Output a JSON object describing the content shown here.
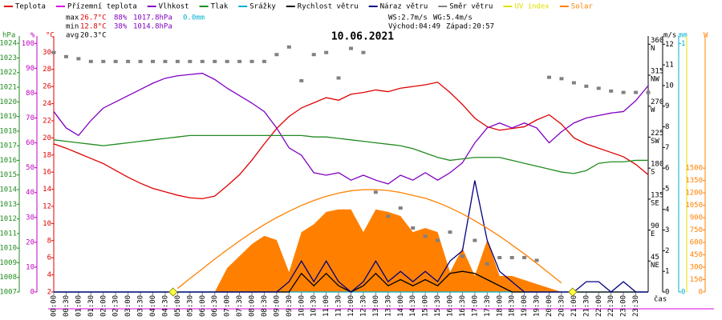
{
  "chart_data": {
    "type": "line",
    "title": "10.06.2021",
    "x_label": "čas",
    "xlim": [
      0,
      24
    ],
    "xticks": [
      {
        "value": 0,
        "label": "00:00"
      },
      {
        "value": 0.5,
        "label": "00:30"
      },
      {
        "value": 1,
        "label": "01:00"
      },
      {
        "value": 1.5,
        "label": "01:30"
      },
      {
        "value": 2,
        "label": "02:00"
      },
      {
        "value": 2.5,
        "label": "02:30"
      },
      {
        "value": 3,
        "label": "03:00"
      },
      {
        "value": 3.5,
        "label": "03:30"
      },
      {
        "value": 4,
        "label": "04:00"
      },
      {
        "value": 4.5,
        "label": "04:30"
      },
      {
        "value": 5,
        "label": "05:00"
      },
      {
        "value": 5.5,
        "label": "05:30"
      },
      {
        "value": 6,
        "label": "06:00"
      },
      {
        "value": 6.5,
        "label": "06:30"
      },
      {
        "value": 7,
        "label": "07:00"
      },
      {
        "value": 7.5,
        "label": "07:30"
      },
      {
        "value": 8,
        "label": "08:00"
      },
      {
        "value": 8.5,
        "label": "08:30"
      },
      {
        "value": 9,
        "label": "09:00"
      },
      {
        "value": 9.5,
        "label": "09:30"
      },
      {
        "value": 10,
        "label": "10:00"
      },
      {
        "value": 10.5,
        "label": "10:30"
      },
      {
        "value": 11,
        "label": "11:00"
      },
      {
        "value": 11.5,
        "label": "11:30"
      },
      {
        "value": 12,
        "label": "12:00"
      },
      {
        "value": 12.5,
        "label": "12:30"
      },
      {
        "value": 13,
        "label": "13:00"
      },
      {
        "value": 13.5,
        "label": "13:30"
      },
      {
        "value": 14,
        "label": "14:00"
      },
      {
        "value": 14.5,
        "label": "14:30"
      },
      {
        "value": 15,
        "label": "15:00"
      },
      {
        "value": 15.5,
        "label": "15:30"
      },
      {
        "value": 16,
        "label": "16:00"
      },
      {
        "value": 16.5,
        "label": "16:30"
      },
      {
        "value": 17,
        "label": "17:00"
      },
      {
        "value": 17.5,
        "label": "17:30"
      },
      {
        "value": 18,
        "label": "18:00"
      },
      {
        "value": 18.5,
        "label": "18:30"
      },
      {
        "value": 19,
        "label": "19:00"
      },
      {
        "value": 19.5,
        "label": "19:30"
      },
      {
        "value": 20,
        "label": "20:00"
      },
      {
        "value": 20.5,
        "label": "20:30"
      },
      {
        "value": 21,
        "label": "21:00"
      },
      {
        "value": 21.5,
        "label": "21:30"
      },
      {
        "value": 22,
        "label": "22:00"
      },
      {
        "value": 22.5,
        "label": "22:30"
      },
      {
        "value": 23,
        "label": "23:00"
      },
      {
        "value": 23.5,
        "label": "23:30"
      }
    ],
    "x": [
      0,
      0.5,
      1,
      1.5,
      2,
      2.5,
      3,
      3.5,
      4,
      4.5,
      5,
      5.5,
      6,
      6.5,
      7,
      7.5,
      8,
      8.5,
      9,
      9.5,
      10,
      10.5,
      11,
      11.5,
      12,
      12.5,
      13,
      13.5,
      14,
      14.5,
      15,
      15.5,
      16,
      16.5,
      17,
      17.5,
      18,
      18.5,
      19,
      19.5,
      20,
      20.5,
      21,
      21.5,
      22,
      22.5,
      23,
      23.5,
      24
    ],
    "axes": {
      "pressure": {
        "unit": "hPa",
        "color": "#228b22",
        "ylim": [
          1007,
          1024.5
        ],
        "yticks": [
          1007,
          1008,
          1009,
          1010,
          1011,
          1012,
          1013,
          1014,
          1015,
          1016,
          1017,
          1018,
          1019,
          1020,
          1021,
          1022,
          1023,
          1024
        ]
      },
      "humidity": {
        "unit": "%",
        "color": "#c000c0",
        "ylim": [
          0,
          103
        ],
        "yticks": [
          0,
          10,
          20,
          30,
          40,
          50,
          60,
          70,
          80,
          90,
          100
        ]
      },
      "temperature": {
        "unit": "°C",
        "color": "#e00000",
        "ylim": [
          2,
          31.9
        ],
        "yticks": [
          2,
          4,
          6,
          8,
          10,
          12,
          14,
          16,
          18,
          20,
          22,
          24,
          26,
          28,
          30
        ]
      },
      "direction": {
        "color": "#000000",
        "ylim": [
          0,
          372
        ],
        "yticks": [
          {
            "value": 45,
            "label": "45",
            "compass": "NE"
          },
          {
            "value": 90,
            "label": "90",
            "compass": "E"
          },
          {
            "value": 135,
            "label": "135",
            "compass": "SE"
          },
          {
            "value": 180,
            "label": "180",
            "compass": "S"
          },
          {
            "value": 225,
            "label": "225",
            "compass": "SW"
          },
          {
            "value": 270,
            "label": "270",
            "compass": "W"
          },
          {
            "value": 315,
            "label": "315",
            "compass": "NW"
          },
          {
            "value": 360,
            "label": "360",
            "compass": "N"
          }
        ]
      },
      "wind": {
        "unit": "m/s",
        "color": "#000000",
        "ylim": [
          0,
          12.4
        ],
        "yticks": [
          0,
          1,
          2,
          3,
          4,
          5,
          6,
          7,
          8,
          9,
          10,
          11,
          12
        ]
      },
      "rain": {
        "unit": "mm",
        "color": "#00b0d0",
        "ylim": [
          0,
          1.03
        ],
        "yticks": [
          0,
          1
        ]
      },
      "uv": {
        "color": "#e0e000",
        "ylim": [
          0,
          12.4
        ]
      },
      "solar": {
        "unit": "W",
        "color": "#ff8000",
        "ylim": [
          0,
          3100
        ],
        "yticks": [
          0,
          150,
          300,
          450,
          600,
          750,
          900,
          1050,
          1200,
          1350,
          1500
        ]
      }
    },
    "series": [
      {
        "name": "Teplota",
        "color": "#e00000",
        "axis": "temperature",
        "type": "line",
        "values": [
          19.3,
          18.8,
          18.2,
          17.6,
          17.0,
          16.2,
          15.4,
          14.7,
          14.1,
          13.7,
          13.3,
          13.0,
          12.9,
          13.2,
          14.4,
          15.7,
          17.4,
          19.3,
          21.1,
          22.5,
          23.5,
          24.1,
          24.7,
          24.4,
          25.1,
          25.3,
          25.6,
          25.4,
          25.8,
          26.0,
          26.2,
          26.5,
          25.3,
          23.9,
          22.3,
          21.3,
          20.9,
          21.1,
          21.3,
          22.1,
          22.7,
          21.6,
          20.0,
          19.3,
          18.8,
          18.3,
          17.8,
          16.9,
          15.7
        ]
      },
      {
        "name": "Přízemní teplota",
        "color": "#e000e0",
        "axis": "temperature",
        "type": "line"
      },
      {
        "name": "Vlhkost",
        "color": "#8000c0",
        "axis": "humidity",
        "type": "line",
        "values": [
          72.6,
          66,
          63,
          69,
          74,
          76.5,
          79,
          81.5,
          84,
          86,
          87,
          87.5,
          88,
          85.5,
          82,
          79,
          76,
          72.6,
          66,
          58,
          55,
          48,
          47,
          48,
          45,
          47,
          45,
          43.5,
          47,
          45,
          48,
          45,
          48,
          52,
          60,
          66,
          68,
          66,
          68,
          66,
          60,
          64.5,
          68,
          70,
          71,
          72,
          72.6,
          77,
          83
        ]
      },
      {
        "name": "Tlak",
        "color": "#228b22",
        "axis": "pressure",
        "type": "line",
        "values": [
          1017.4,
          1017.3,
          1017.2,
          1017.1,
          1017.0,
          1017.1,
          1017.2,
          1017.3,
          1017.4,
          1017.5,
          1017.6,
          1017.7,
          1017.7,
          1017.7,
          1017.7,
          1017.7,
          1017.7,
          1017.7,
          1017.7,
          1017.7,
          1017.7,
          1017.6,
          1017.6,
          1017.5,
          1017.4,
          1017.3,
          1017.2,
          1017.1,
          1017.0,
          1016.8,
          1016.5,
          1016.2,
          1016.0,
          1016.1,
          1016.2,
          1016.2,
          1016.2,
          1016.0,
          1015.8,
          1015.6,
          1015.4,
          1015.2,
          1015.1,
          1015.3,
          1015.8,
          1015.9,
          1015.9,
          1016.0,
          1016.0
        ]
      },
      {
        "name": "Srážky",
        "color": "#00b0d0",
        "axis": "rain",
        "type": "line",
        "values": [
          0,
          0,
          0,
          0,
          0,
          0,
          0,
          0,
          0,
          0,
          0,
          0,
          0,
          0,
          0,
          0,
          0,
          0,
          0,
          0,
          0,
          0,
          0,
          0,
          0,
          0,
          0,
          0,
          0,
          0,
          0,
          0,
          0,
          0,
          0,
          0,
          0,
          0,
          0,
          0,
          0,
          0,
          0,
          0,
          0,
          0,
          0,
          0,
          0
        ]
      },
      {
        "name": "Rychlost větru",
        "color": "#000000",
        "axis": "wind",
        "type": "line",
        "values": [
          0,
          0,
          0,
          0,
          0,
          0,
          0,
          0,
          0,
          0,
          0,
          0,
          0,
          0,
          0,
          0,
          0,
          0,
          0,
          0,
          0.9,
          0.3,
          0.9,
          0.3,
          0,
          0.3,
          0.9,
          0.3,
          0.6,
          0.3,
          0.6,
          0.3,
          0.9,
          1,
          0.9,
          0.6,
          0.3,
          0,
          0,
          0,
          0,
          0,
          0,
          0,
          0,
          0,
          0,
          0,
          0
        ]
      },
      {
        "name": "Náraz větru",
        "color": "#000080",
        "axis": "wind",
        "type": "line",
        "values": [
          0,
          0,
          0,
          0,
          0,
          0,
          0,
          0,
          0,
          0,
          0,
          0,
          0,
          0,
          0,
          0,
          0,
          0,
          0,
          0.5,
          1.5,
          0.5,
          1.5,
          0.5,
          0,
          0.5,
          1.5,
          0.5,
          1,
          0.5,
          1,
          0.5,
          1.5,
          2,
          5.4,
          2.5,
          1,
          0.5,
          0,
          0,
          0,
          0,
          0,
          0.5,
          0.5,
          0,
          0.5,
          0,
          0
        ]
      },
      {
        "name": "Směr větru",
        "color": "#808080",
        "axis": "direction",
        "type": "points",
        "values": [
          348,
          342,
          339,
          335,
          335,
          335,
          335,
          335,
          335,
          335,
          335,
          335,
          335,
          335,
          335,
          335,
          335,
          335,
          345,
          356,
          307,
          345,
          348,
          311,
          354,
          348,
          145,
          110,
          122,
          93,
          81,
          75,
          87,
          52,
          75,
          41,
          50,
          50,
          50,
          46,
          312,
          310,
          304,
          299,
          296,
          292,
          290,
          290,
          290
        ]
      },
      {
        "name": "UV index",
        "color": "#e0e000",
        "axis": "uv",
        "type": "line"
      },
      {
        "name": "Solar",
        "color": "#ff8000",
        "axis": "solar",
        "type": "area",
        "values": [
          0,
          0,
          0,
          0,
          0,
          0,
          0,
          0,
          0,
          0,
          0,
          0,
          0,
          0,
          290,
          435,
          580,
          680,
          630,
          240,
          725,
          820,
          970,
          1000,
          1000,
          725,
          1000,
          970,
          920,
          725,
          775,
          725,
          240,
          530,
          195,
          630,
          195,
          195,
          145,
          97,
          48,
          0,
          0,
          0,
          0,
          0,
          0,
          0,
          0
        ]
      },
      {
        "color": "#ff8000",
        "axis": "solar",
        "type": "line",
        "values": [
          null,
          null,
          null,
          null,
          null,
          null,
          null,
          null,
          null,
          null,
          43,
          164,
          280,
          398,
          511,
          619,
          721,
          816,
          901,
          978,
          1048,
          1108,
          1159,
          1198,
          1226,
          1239,
          1240,
          1229,
          1205,
          1170,
          1136,
          1083,
          1019,
          946,
          863,
          773,
          676,
          570,
          461,
          347,
          229,
          109,
          null,
          null,
          null,
          null,
          null,
          null,
          null
        ]
      }
    ],
    "stats": {
      "max": {
        "label": "max",
        "temperature": "26.7°C",
        "humidity": "88%",
        "pressure": "1017.8hPa",
        "rain": "0.0mm"
      },
      "min": {
        "label": "min",
        "temperature": "12.8°C",
        "humidity": "38%",
        "pressure": "1014.8hPa"
      },
      "avg": {
        "label": "avg",
        "temperature": "20.3°C"
      },
      "wind_speed": "WS:2.7m/s",
      "wind_gust": "WG:5.4m/s",
      "sunrise_label": "Východ:",
      "sunrise": "04:49",
      "sunset_label": "Západ:",
      "sunset": "20:57"
    }
  }
}
